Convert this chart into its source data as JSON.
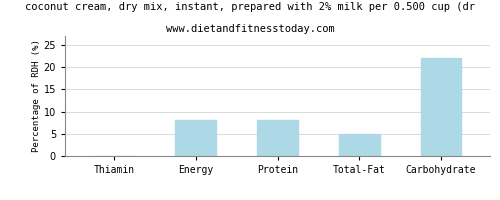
{
  "categories": [
    "Thiamin",
    "Energy",
    "Protein",
    "Total-Fat",
    "Carbohydrate"
  ],
  "values": [
    0,
    8,
    8,
    5,
    22
  ],
  "bar_color": "#add8e6",
  "title": "coconut cream, dry mix, instant, prepared with 2% milk per 0.500 cup (dr",
  "subtitle": "www.dietandfitnesstoday.com",
  "ylabel": "Percentage of RDH (%)",
  "ylim": [
    0,
    27
  ],
  "yticks": [
    0,
    5,
    10,
    15,
    20,
    25
  ],
  "background_color": "#ffffff",
  "title_fontsize": 7.5,
  "subtitle_fontsize": 7.5,
  "ylabel_fontsize": 6.5,
  "tick_fontsize": 7.0,
  "bar_width": 0.5
}
